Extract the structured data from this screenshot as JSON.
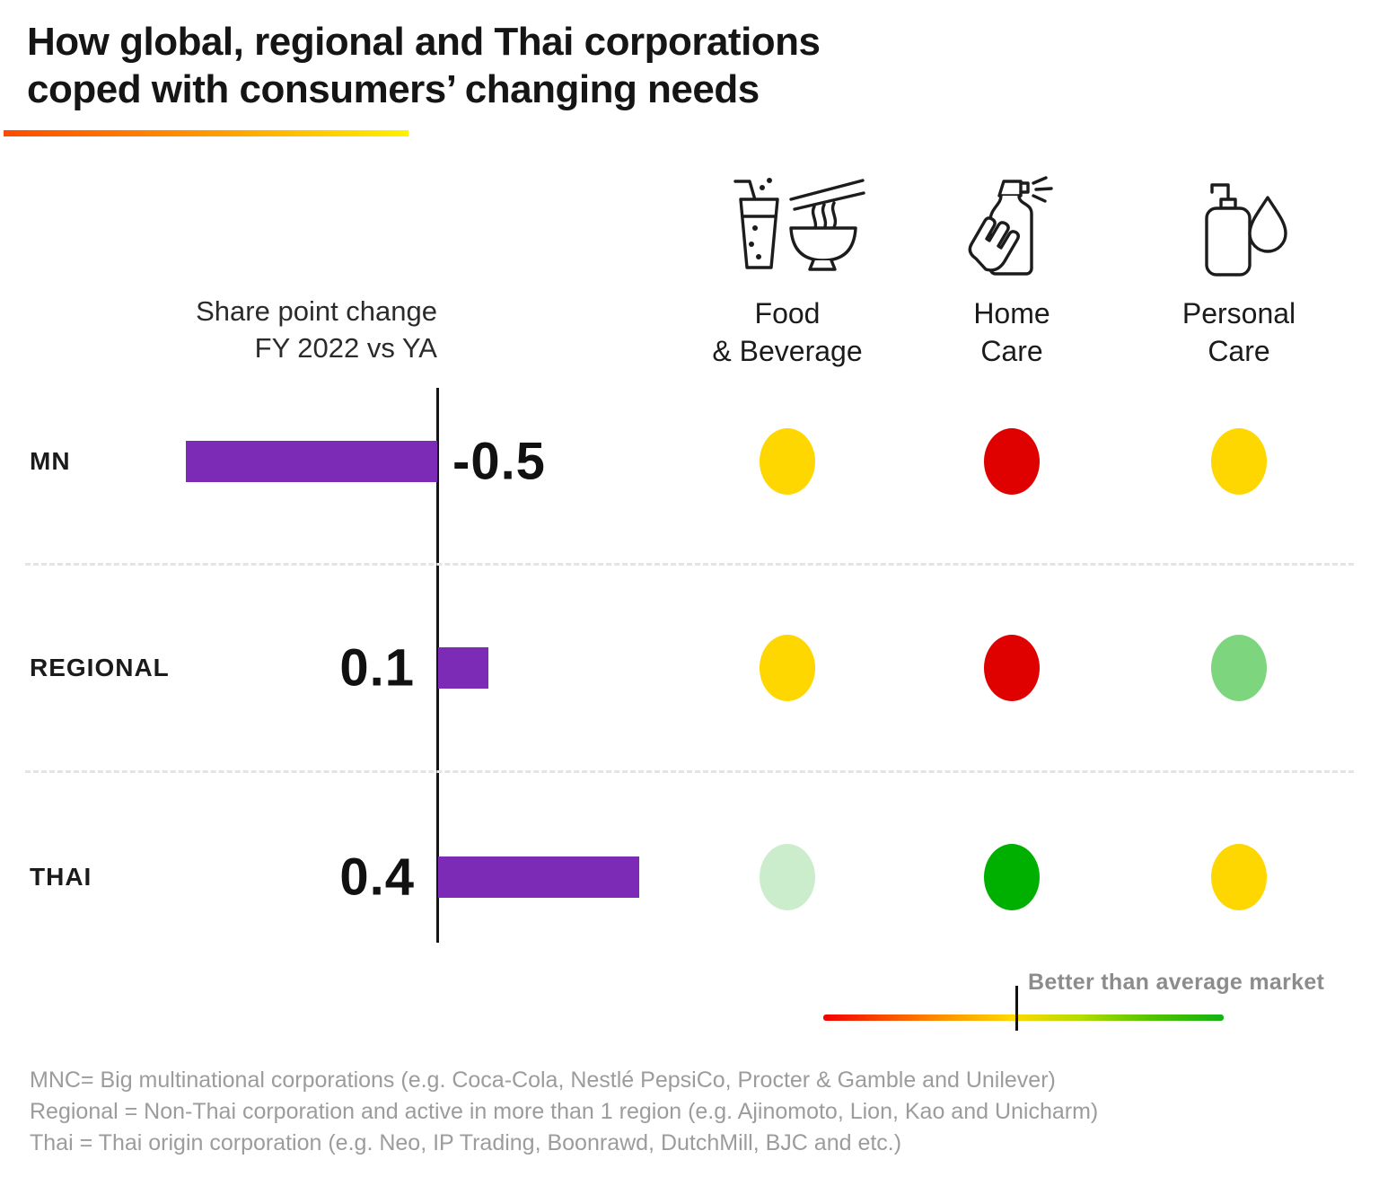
{
  "title": {
    "line1": "How global, regional and Thai corporations",
    "line2": "coped with consumers’ changing needs"
  },
  "axis_header": {
    "line1": "Share point change",
    "line2": "FY 2022 vs YA"
  },
  "columns": [
    {
      "id": "food-beverage",
      "label_line1": "Food",
      "label_line2": "& Beverage",
      "icon": "food-beverage-icon"
    },
    {
      "id": "home-care",
      "label_line1": "Home",
      "label_line2": "Care",
      "icon": "home-care-icon"
    },
    {
      "id": "personal-care",
      "label_line1": "Personal",
      "label_line2": "Care",
      "icon": "personal-care-icon"
    }
  ],
  "rows": [
    {
      "label": "MN",
      "value": -0.5,
      "value_label": "-0.5",
      "dots": [
        "yellow",
        "red",
        "yellow"
      ]
    },
    {
      "label": "REGIONAL",
      "value": 0.1,
      "value_label": "0.1",
      "dots": [
        "yellow",
        "red",
        "light-green"
      ]
    },
    {
      "label": "THAI",
      "value": 0.4,
      "value_label": "0.4",
      "dots": [
        "pale-green",
        "green",
        "yellow"
      ]
    }
  ],
  "dot_colors": {
    "yellow": "#FFD700",
    "red": "#DF0000",
    "light-green": "#7DD57D",
    "pale-green": "#CBEDCC",
    "green": "#00B000"
  },
  "colors": {
    "bar": "#7B2BB5",
    "axis": "#151515",
    "title_rule_gradient": [
      "#FF4A00",
      "#FFF200"
    ],
    "legend_gradient": [
      "#F20000",
      "#FFD800",
      "#12B212"
    ],
    "footnote_text": "#9C9C9C"
  },
  "legend": {
    "label": "Better than average market"
  },
  "footnotes": [
    "MNC= Big multinational corporations (e.g. Coca-Cola, Nestlé  PepsiCo, Procter & Gamble and Unilever)",
    "Regional = Non-Thai corporation and active in more than 1 region (e.g. Ajinomoto, Lion, Kao and Unicharm)",
    "Thai = Thai origin corporation (e.g. Neo, IP Trading, Boonrawd, DutchMill, BJC and etc.)"
  ],
  "chart_data": {
    "type": "bar",
    "orientation": "horizontal",
    "title": "How global, regional and Thai corporations coped with consumers’ changing needs",
    "categories": [
      "MN",
      "REGIONAL",
      "THAI"
    ],
    "values": [
      -0.5,
      0.1,
      0.4
    ],
    "value_axis_label": "Share point change FY 2022 vs YA",
    "xlim": [
      -0.55,
      0.45
    ],
    "bar_color": "#7B2BB5",
    "grid": false,
    "data_labels": [
      "-0.5",
      "0.1",
      "0.4"
    ],
    "rating_matrix": {
      "columns": [
        "Food & Beverage",
        "Home Care",
        "Personal Care"
      ],
      "rows": [
        "MN",
        "REGIONAL",
        "THAI"
      ],
      "ratings": [
        [
          "yellow",
          "red",
          "yellow"
        ],
        [
          "yellow",
          "red",
          "light-green"
        ],
        [
          "pale-green",
          "green",
          "yellow"
        ]
      ]
    },
    "legend_position": "bottom-right",
    "legend_entries": [
      "Better than average market"
    ]
  }
}
